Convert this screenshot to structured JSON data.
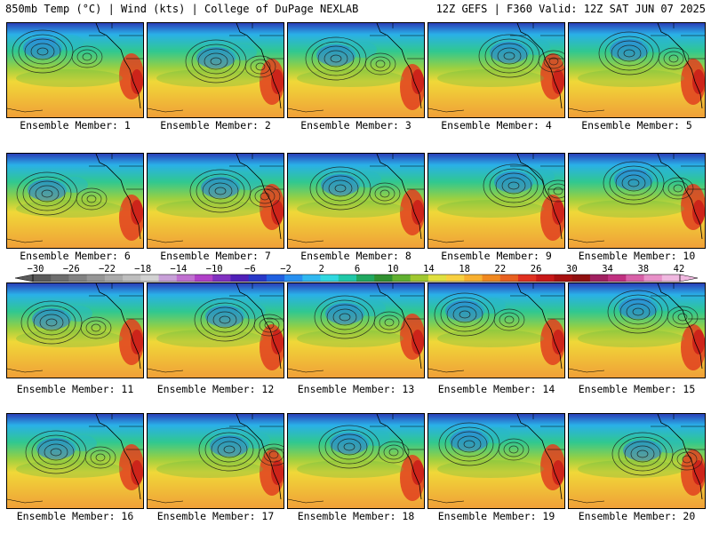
{
  "header": {
    "left": "850mb Temp (°C) | Wind (kts) | College of DuPage NEXLAB",
    "right": "12Z GEFS | F360 Valid: 12Z SAT JUN 07 2025"
  },
  "panels": [
    {
      "label": "Ensemble Member: 1"
    },
    {
      "label": "Ensemble Member: 2"
    },
    {
      "label": "Ensemble Member: 3"
    },
    {
      "label": "Ensemble Member: 4"
    },
    {
      "label": "Ensemble Member: 5"
    },
    {
      "label": "Ensemble Member: 6"
    },
    {
      "label": "Ensemble Member: 7"
    },
    {
      "label": "Ensemble Member: 8"
    },
    {
      "label": "Ensemble Member: 9"
    },
    {
      "label": "Ensemble Member: 10"
    },
    {
      "label": "Ensemble Member: 11"
    },
    {
      "label": "Ensemble Member: 12"
    },
    {
      "label": "Ensemble Member: 13"
    },
    {
      "label": "Ensemble Member: 14"
    },
    {
      "label": "Ensemble Member: 15"
    },
    {
      "label": "Ensemble Member: 16"
    },
    {
      "label": "Ensemble Member: 17"
    },
    {
      "label": "Ensemble Member: 18"
    },
    {
      "label": "Ensemble Member: 19"
    },
    {
      "label": "Ensemble Member: 20"
    }
  ],
  "colorbar": {
    "labels": [
      "−30",
      "−26",
      "−22",
      "−18",
      "−14",
      "−10",
      "−6",
      "−2",
      "2",
      "6",
      "10",
      "14",
      "18",
      "22",
      "26",
      "30",
      "34",
      "38",
      "42"
    ],
    "colors": [
      "#5a5a5a",
      "#6e6e6e",
      "#828282",
      "#969696",
      "#aaaaaa",
      "#bebebe",
      "#d2d2d2",
      "#c8a0d8",
      "#c070d0",
      "#b040c8",
      "#8030c0",
      "#5020b8",
      "#2838c8",
      "#2060e0",
      "#2890f0",
      "#30b8f0",
      "#30d8e0",
      "#20c8a8",
      "#20a860",
      "#309030",
      "#60b030",
      "#a0c830",
      "#e0e040",
      "#f8d040",
      "#f8b030",
      "#f08820",
      "#e86020",
      "#e03020",
      "#c81818",
      "#a81010",
      "#901010",
      "#a02060",
      "#c03080",
      "#d860a8",
      "#e890c8",
      "#f0b8e0"
    ]
  }
}
